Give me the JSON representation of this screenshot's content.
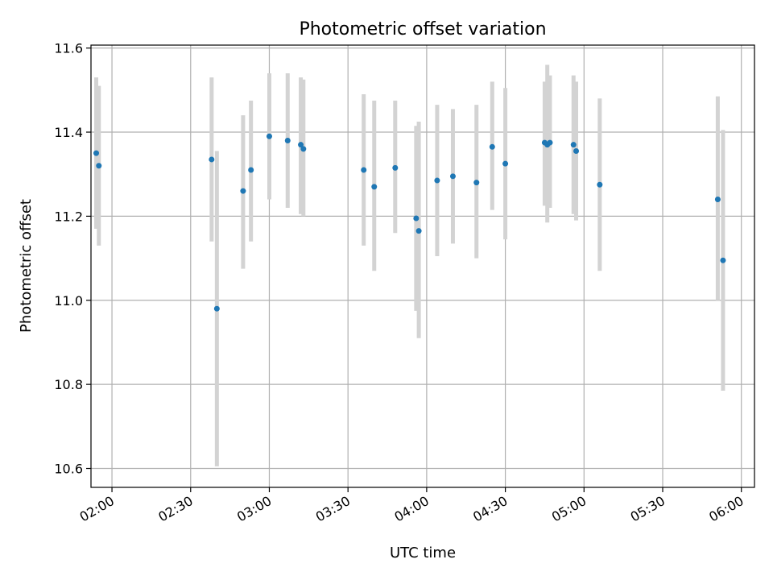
{
  "chart_data": {
    "type": "scatter",
    "title": "Photometric offset variation",
    "xlabel": "UTC time",
    "ylabel": "Photometric offset",
    "x_axis_type": "time",
    "xlim": [
      "01:52",
      "06:05"
    ],
    "ylim": [
      10.555,
      11.607
    ],
    "grid": true,
    "x_ticks": [
      "02:00",
      "02:30",
      "03:00",
      "03:30",
      "04:00",
      "04:30",
      "05:00",
      "05:30",
      "06:00"
    ],
    "y_ticks": [
      "10.6",
      "10.8",
      "11.0",
      "11.2",
      "11.4",
      "11.6"
    ],
    "marker_color": "#1f77b4",
    "errorbar_color": "#d3d3d3",
    "points": [
      {
        "t": "01:54",
        "y": 11.35,
        "lo": 11.17,
        "hi": 11.53
      },
      {
        "t": "01:55",
        "y": 11.32,
        "lo": 11.13,
        "hi": 11.51
      },
      {
        "t": "02:38",
        "y": 11.335,
        "lo": 11.14,
        "hi": 11.53
      },
      {
        "t": "02:40",
        "y": 10.98,
        "lo": 10.605,
        "hi": 11.355
      },
      {
        "t": "02:50",
        "y": 11.26,
        "lo": 11.075,
        "hi": 11.44
      },
      {
        "t": "02:53",
        "y": 11.31,
        "lo": 11.14,
        "hi": 11.475
      },
      {
        "t": "03:00",
        "y": 11.39,
        "lo": 11.24,
        "hi": 11.54
      },
      {
        "t": "03:07",
        "y": 11.38,
        "lo": 11.22,
        "hi": 11.54
      },
      {
        "t": "03:12",
        "y": 11.37,
        "lo": 11.205,
        "hi": 11.53
      },
      {
        "t": "03:13",
        "y": 11.36,
        "lo": 11.2,
        "hi": 11.525
      },
      {
        "t": "03:36",
        "y": 11.31,
        "lo": 11.13,
        "hi": 11.49
      },
      {
        "t": "03:40",
        "y": 11.27,
        "lo": 11.07,
        "hi": 11.475
      },
      {
        "t": "03:48",
        "y": 11.315,
        "lo": 11.16,
        "hi": 11.475
      },
      {
        "t": "03:56",
        "y": 11.195,
        "lo": 10.975,
        "hi": 11.415
      },
      {
        "t": "03:57",
        "y": 11.165,
        "lo": 10.91,
        "hi": 11.425
      },
      {
        "t": "04:04",
        "y": 11.285,
        "lo": 11.105,
        "hi": 11.465
      },
      {
        "t": "04:10",
        "y": 11.295,
        "lo": 11.135,
        "hi": 11.455
      },
      {
        "t": "04:19",
        "y": 11.28,
        "lo": 11.1,
        "hi": 11.465
      },
      {
        "t": "04:25",
        "y": 11.365,
        "lo": 11.215,
        "hi": 11.52
      },
      {
        "t": "04:30",
        "y": 11.325,
        "lo": 11.145,
        "hi": 11.505
      },
      {
        "t": "04:45",
        "y": 11.375,
        "lo": 11.225,
        "hi": 11.52
      },
      {
        "t": "04:46",
        "y": 11.37,
        "lo": 11.185,
        "hi": 11.56
      },
      {
        "t": "04:47",
        "y": 11.375,
        "lo": 11.22,
        "hi": 11.535
      },
      {
        "t": "04:56",
        "y": 11.37,
        "lo": 11.205,
        "hi": 11.535
      },
      {
        "t": "04:57",
        "y": 11.355,
        "lo": 11.19,
        "hi": 11.52
      },
      {
        "t": "05:06",
        "y": 11.275,
        "lo": 11.07,
        "hi": 11.48
      },
      {
        "t": "05:51",
        "y": 11.24,
        "lo": 11.0,
        "hi": 11.485
      },
      {
        "t": "05:53",
        "y": 11.095,
        "lo": 10.785,
        "hi": 11.405
      }
    ]
  }
}
